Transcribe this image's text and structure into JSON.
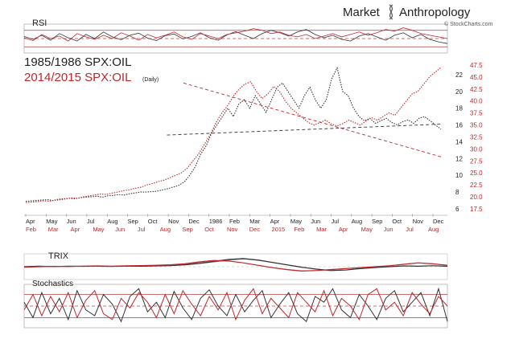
{
  "brand": {
    "name_left": "Market",
    "name_right": "Anthropology",
    "credit": "© StockCharts.com"
  },
  "colors": {
    "black_series": "#333333",
    "red_series": "#c0262b",
    "red_text": "#c0262b",
    "band_line": "#b04040",
    "fill_red": "#c06060"
  },
  "chart_data": [
    {
      "type": "line",
      "panel": "RSI",
      "title": "RSI",
      "levels": [
        70,
        50,
        30
      ],
      "ylim": [
        15,
        85
      ],
      "series": [
        {
          "color_key": "black_series",
          "values": [
            55,
            48,
            58,
            46,
            62,
            52,
            44,
            60,
            50,
            66,
            54,
            47,
            58,
            63,
            51,
            45,
            57,
            61,
            49,
            55,
            64,
            52,
            46,
            59,
            67,
            58,
            50,
            62,
            70,
            64,
            56,
            66,
            72,
            60,
            52,
            58,
            48,
            44,
            56,
            62,
            54,
            46,
            58,
            64,
            52,
            60,
            48,
            42,
            38
          ]
        },
        {
          "color_key": "red_series",
          "values": [
            52,
            45,
            60,
            50,
            56,
            44,
            62,
            54,
            48,
            58,
            50,
            64,
            56,
            46,
            60,
            52,
            58,
            66,
            54,
            48,
            62,
            56,
            50,
            60,
            64,
            68,
            74,
            70,
            62,
            66,
            58,
            54,
            60,
            50,
            56,
            62,
            54,
            60,
            66,
            58,
            64,
            72,
            68,
            76,
            70,
            62,
            58,
            54,
            50
          ]
        }
      ]
    },
    {
      "type": "line",
      "panel": "main",
      "legend": [
        {
          "label": "1985/1986 SPX:OIL",
          "color_key": "black_series"
        },
        {
          "label": "2014/2015 SPX:OIL",
          "sub": "(Daily)",
          "color_key": "red_series"
        }
      ],
      "x_ticks_top": [
        "Apr",
        "May",
        "Jun",
        "Jul",
        "Aug",
        "Sep",
        "Oct",
        "Nov",
        "Dec",
        "1986",
        "Feb",
        "Mar",
        "Apr",
        "May",
        "Jun",
        "Jul",
        "Aug",
        "Sep",
        "Oct",
        "Nov",
        "Dec"
      ],
      "x_ticks_bottom": [
        "Feb",
        "Mar",
        "Apr",
        "May",
        "Jun",
        "Jul",
        "Aug",
        "Sep",
        "Oct",
        "Nov",
        "Dec",
        "2015",
        "Feb",
        "Mar",
        "Apr",
        "May",
        "Jun",
        "Jul",
        "Aug"
      ],
      "y_ticks_left": [
        6,
        8,
        10,
        12,
        14,
        16,
        18,
        20,
        22
      ],
      "y_ticks_right": [
        17.5,
        20.0,
        22.5,
        25.0,
        27.5,
        30.0,
        32.5,
        35.0,
        37.5,
        40.0,
        42.5,
        45.0,
        47.5
      ],
      "ylim_left": [
        6,
        24
      ],
      "ylim_right": [
        17.5,
        49
      ],
      "series": [
        {
          "name": "1985/1986 SPX:OIL",
          "color_key": "black_series",
          "axis": "left",
          "values": [
            6.9,
            6.95,
            7.0,
            7.05,
            7.1,
            7.0,
            7.15,
            7.2,
            7.25,
            7.2,
            7.35,
            7.4,
            7.45,
            7.5,
            7.4,
            7.55,
            7.6,
            7.7,
            7.65,
            7.8,
            7.9,
            8.0,
            8.0,
            8.05,
            8.1,
            8.25,
            8.4,
            8.6,
            8.8,
            9.2,
            10.0,
            11.0,
            12.5,
            13.5,
            15.0,
            16.0,
            17.0,
            18.0,
            17.0,
            18.5,
            19.0,
            18.0,
            19.5,
            18.5,
            17.5,
            19.0,
            20.5,
            21.0,
            20.0,
            19.0,
            18.0,
            19.5,
            20.5,
            19.0,
            18.0,
            19.0,
            21.5,
            22.8,
            20.0,
            19.5,
            18.0,
            17.0,
            16.5,
            16.8,
            16.2,
            16.5,
            16.8,
            16.3,
            16.0,
            16.4,
            16.6,
            16.2,
            16.8,
            17.0,
            16.5,
            16.0,
            15.5
          ]
        },
        {
          "name": "2014/2015 SPX:OIL",
          "color_key": "red_series",
          "axis": "right",
          "values": [
            18.8,
            18.9,
            19.0,
            19.2,
            19.1,
            19.3,
            19.4,
            19.6,
            19.8,
            19.7,
            20.0,
            20.2,
            20.4,
            20.6,
            20.5,
            20.8,
            21.0,
            21.3,
            21.5,
            21.8,
            22.0,
            22.5,
            22.8,
            23.2,
            23.5,
            24.0,
            24.5,
            25.0,
            26.0,
            27.5,
            29.0,
            31.0,
            33.0,
            35.5,
            37.5,
            39.0,
            41.0,
            42.5,
            43.5,
            44.0,
            42.0,
            40.5,
            41.5,
            43.0,
            42.0,
            40.0,
            38.5,
            37.5,
            36.5,
            35.5,
            35.0,
            35.5,
            36.0,
            35.2,
            34.8,
            35.3,
            36.0,
            35.5,
            35.0,
            35.8,
            36.5,
            36.0,
            36.8,
            37.5,
            37.0,
            38.5,
            40.0,
            41.5,
            42.0,
            43.5,
            45.0,
            46.0,
            47.0
          ]
        }
      ],
      "trendlines": [
        {
          "style": "dashed",
          "color_key": "black_series",
          "axis": "left",
          "from": [
            0.34,
            14.8
          ],
          "to": [
            1.0,
            16.1
          ]
        },
        {
          "style": "dashed",
          "color_key": "red_series",
          "axis": "left",
          "from": [
            0.38,
            21.0
          ],
          "to": [
            1.0,
            12.2
          ]
        }
      ]
    },
    {
      "type": "line",
      "panel": "TRIX",
      "title": "TRIX",
      "ylim": [
        -1,
        1
      ],
      "series": [
        {
          "color_key": "black_series",
          "values": [
            0.0,
            0.05,
            0.02,
            0.06,
            0.04,
            0.05,
            0.03,
            0.06,
            0.05,
            0.08,
            0.12,
            0.2,
            0.35,
            0.55,
            0.75,
            0.85,
            0.7,
            0.45,
            0.2,
            -0.05,
            -0.25,
            -0.4,
            -0.35,
            -0.2,
            -0.1,
            0.0,
            0.08,
            0.05,
            0.1,
            0.05
          ]
        },
        {
          "color_key": "red_series",
          "values": [
            -0.05,
            0.0,
            0.04,
            0.02,
            0.06,
            0.08,
            0.05,
            0.1,
            0.12,
            0.15,
            0.2,
            0.3,
            0.5,
            0.65,
            0.6,
            0.4,
            0.15,
            -0.1,
            -0.3,
            -0.45,
            -0.4,
            -0.3,
            -0.2,
            -0.1,
            0.0,
            0.1,
            0.25,
            0.4,
            0.3,
            0.15
          ]
        }
      ]
    },
    {
      "type": "line",
      "panel": "Stochastics",
      "title": "Stochastics",
      "levels": [
        80,
        50,
        20
      ],
      "ylim": [
        0,
        100
      ],
      "series": [
        {
          "color_key": "black_series",
          "values": [
            60,
            20,
            85,
            30,
            70,
            15,
            90,
            40,
            25,
            80,
            55,
            10,
            75,
            95,
            35,
            60,
            20,
            88,
            45,
            15,
            70,
            92,
            50,
            25,
            80,
            35,
            65,
            90,
            20,
            55,
            85,
            30,
            10,
            75,
            60,
            95,
            40,
            20,
            80,
            50,
            15,
            70,
            90,
            35,
            60,
            85,
            25,
            95,
            10
          ]
        },
        {
          "color_key": "red_series",
          "values": [
            40,
            80,
            25,
            75,
            35,
            85,
            20,
            65,
            90,
            30,
            15,
            70,
            45,
            85,
            60,
            20,
            80,
            30,
            90,
            55,
            25,
            75,
            40,
            85,
            15,
            65,
            95,
            30,
            70,
            45,
            20,
            85,
            60,
            35,
            90,
            25,
            70,
            50,
            15,
            80,
            95,
            40,
            60,
            25,
            85,
            55,
            30,
            75,
            50
          ]
        }
      ]
    }
  ]
}
